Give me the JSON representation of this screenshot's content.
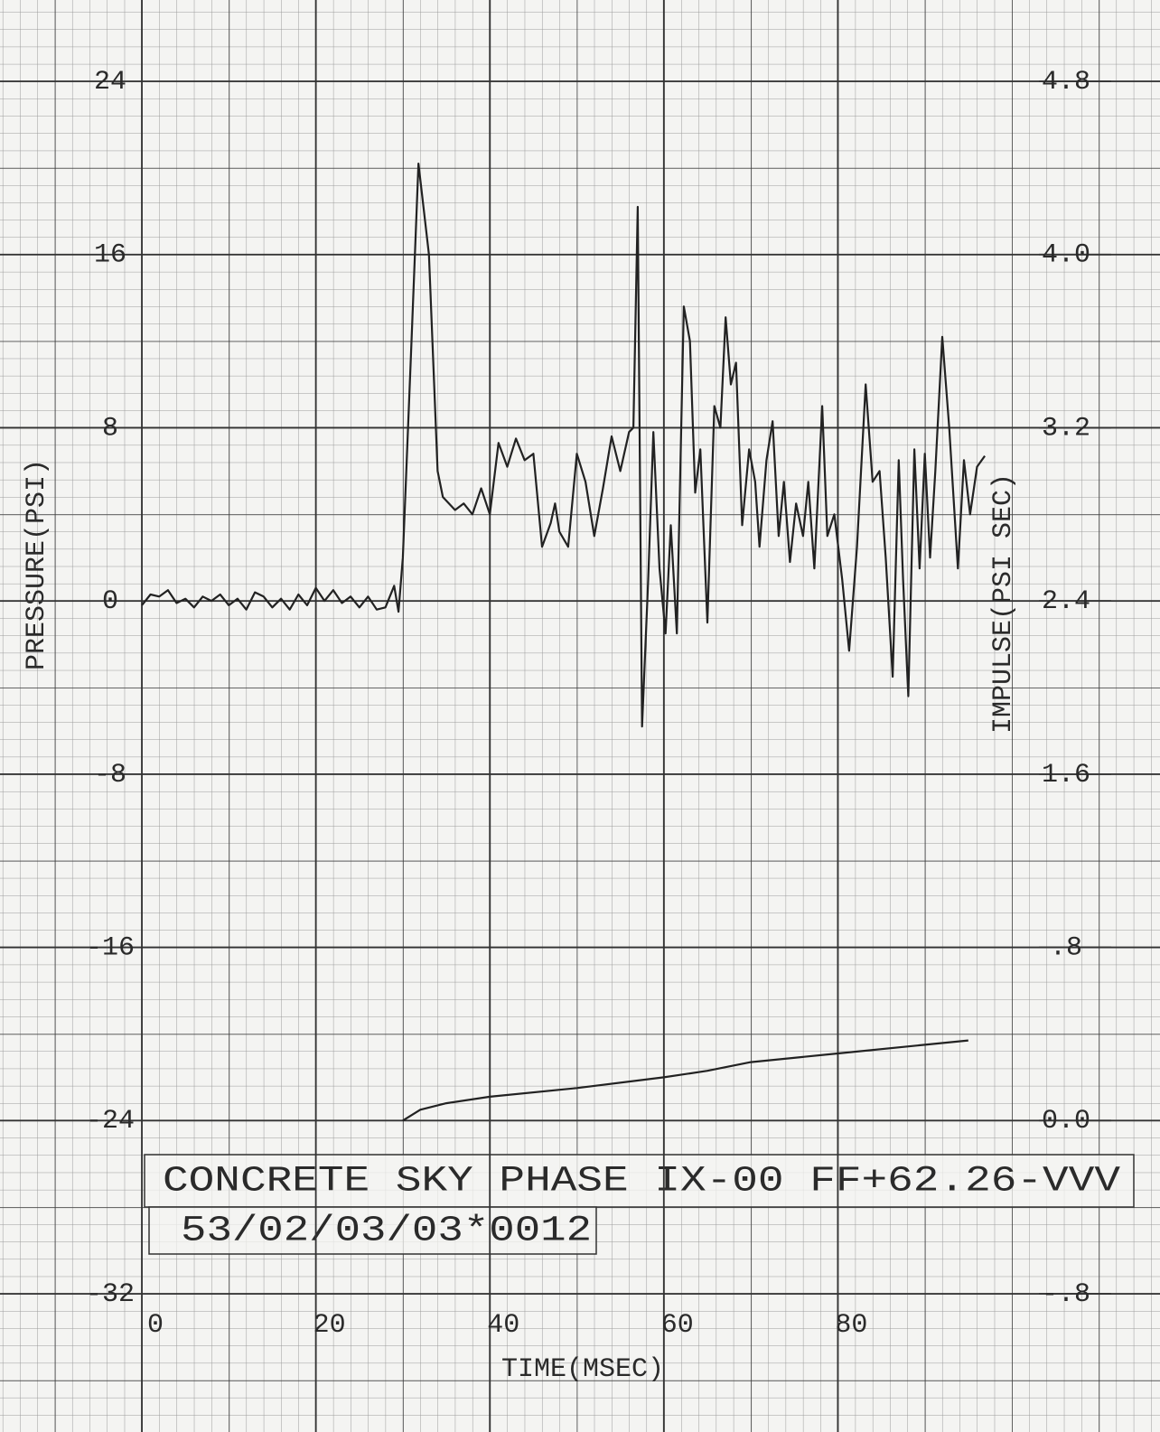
{
  "chart_data": {
    "type": "line",
    "y_label": "PRESSURE(PSI)",
    "y2_label": "IMPULSE(PSI SEC)",
    "x_label": "TIME(MSEC)",
    "annotations": [
      "CONCRETE SKY PHASE IX-00 FF+62.26-VVV",
      "53/02/03/03*0012"
    ],
    "xlim": [
      0,
      110
    ],
    "xticks": [
      0,
      20,
      40,
      60,
      80
    ],
    "ylim": [
      -32,
      24
    ],
    "yticks": [
      24,
      16,
      8,
      0,
      -8,
      -16,
      -24,
      -32
    ],
    "y2lim": [
      -0.8,
      4.8
    ],
    "y2ticks": [
      4.8,
      {
        "value": 4,
        "label": "4.0"
      },
      3.2,
      2.4,
      1.6,
      {
        "value": 0.8,
        "label": ".8"
      },
      {
        "value": 0,
        "label": "0.0"
      },
      {
        "value": -0.8,
        "label": "-.8"
      }
    ],
    "grid": true,
    "series": [
      {
        "color": "#222222",
        "x": [
          0,
          1,
          2,
          3,
          4,
          5,
          6,
          7,
          8,
          9,
          10,
          11,
          12,
          13,
          14,
          15,
          16,
          17,
          18,
          19,
          20,
          21,
          22,
          23,
          24,
          25,
          26,
          27,
          28,
          29,
          29.5,
          30,
          31,
          31.8,
          33,
          34,
          34.6,
          36,
          37,
          38,
          39,
          40,
          41,
          42,
          43,
          44,
          45,
          46,
          47,
          47.5,
          48,
          49,
          50,
          51,
          52,
          53,
          54,
          55,
          56,
          56.5,
          57,
          57.5,
          58.2,
          58.8,
          59.5,
          60.2,
          60.8,
          61.5,
          62.3,
          63,
          63.6,
          64.2,
          65,
          65.8,
          66.5,
          67.1,
          67.7,
          68.3,
          69,
          69.8,
          70.5,
          71,
          71.8,
          72.5,
          73.2,
          73.8,
          74.5,
          75.2,
          76,
          76.6,
          77.3,
          78.2,
          78.8,
          79.6,
          80.5,
          81.3,
          82.2,
          83.2,
          84,
          84.8,
          85.5,
          86.3,
          87,
          87.5,
          88.1,
          88.8,
          89.4,
          90,
          90.6,
          91.2,
          92,
          92.8,
          93.8,
          94.5,
          95.2,
          96,
          96.9
        ],
        "values": [
          -0.2,
          0.3,
          0.2,
          0.5,
          -0.1,
          0.1,
          -0.3,
          0.2,
          0,
          0.3,
          -0.2,
          0.1,
          -0.4,
          0.4,
          0.2,
          -0.3,
          0.1,
          -0.4,
          0.3,
          -0.2,
          0.6,
          0,
          0.5,
          -0.1,
          0.2,
          -0.3,
          0.2,
          -0.4,
          -0.3,
          0.7,
          -0.5,
          2,
          12,
          20.2,
          16,
          6,
          4.8,
          4.2,
          4.5,
          4,
          5.2,
          4,
          7.3,
          6.2,
          7.5,
          6.5,
          6.8,
          2.5,
          3.6,
          4.5,
          3.2,
          2.5,
          6.8,
          5.5,
          3,
          5.2,
          7.6,
          6,
          7.8,
          8,
          18.2,
          -5.8,
          1,
          7.8,
          1.5,
          -1.5,
          3.5,
          -1.5,
          13.6,
          12,
          5,
          7,
          -1,
          9,
          8,
          13.1,
          10,
          11,
          3.5,
          7,
          5.5,
          2.5,
          6.5,
          8.3,
          3,
          5.5,
          1.8,
          4.5,
          3,
          5.5,
          1.5,
          9,
          3,
          4,
          1,
          -2.3,
          2.5,
          10,
          5.5,
          6,
          2,
          -3.5,
          6.5,
          1,
          -4.4,
          7,
          1.5,
          6.8,
          2,
          6,
          12.2,
          8,
          1.5,
          6.5,
          4,
          6.2,
          6.7
        ]
      },
      {
        "color": "#222222",
        "axis": "y2",
        "x": [
          30,
          32,
          35,
          40,
          50,
          60,
          65,
          70,
          80,
          90,
          95
        ],
        "values": [
          0,
          0.05,
          0.08,
          0.11,
          0.15,
          0.2,
          0.23,
          0.27,
          0.31,
          0.35,
          0.37
        ]
      }
    ]
  }
}
